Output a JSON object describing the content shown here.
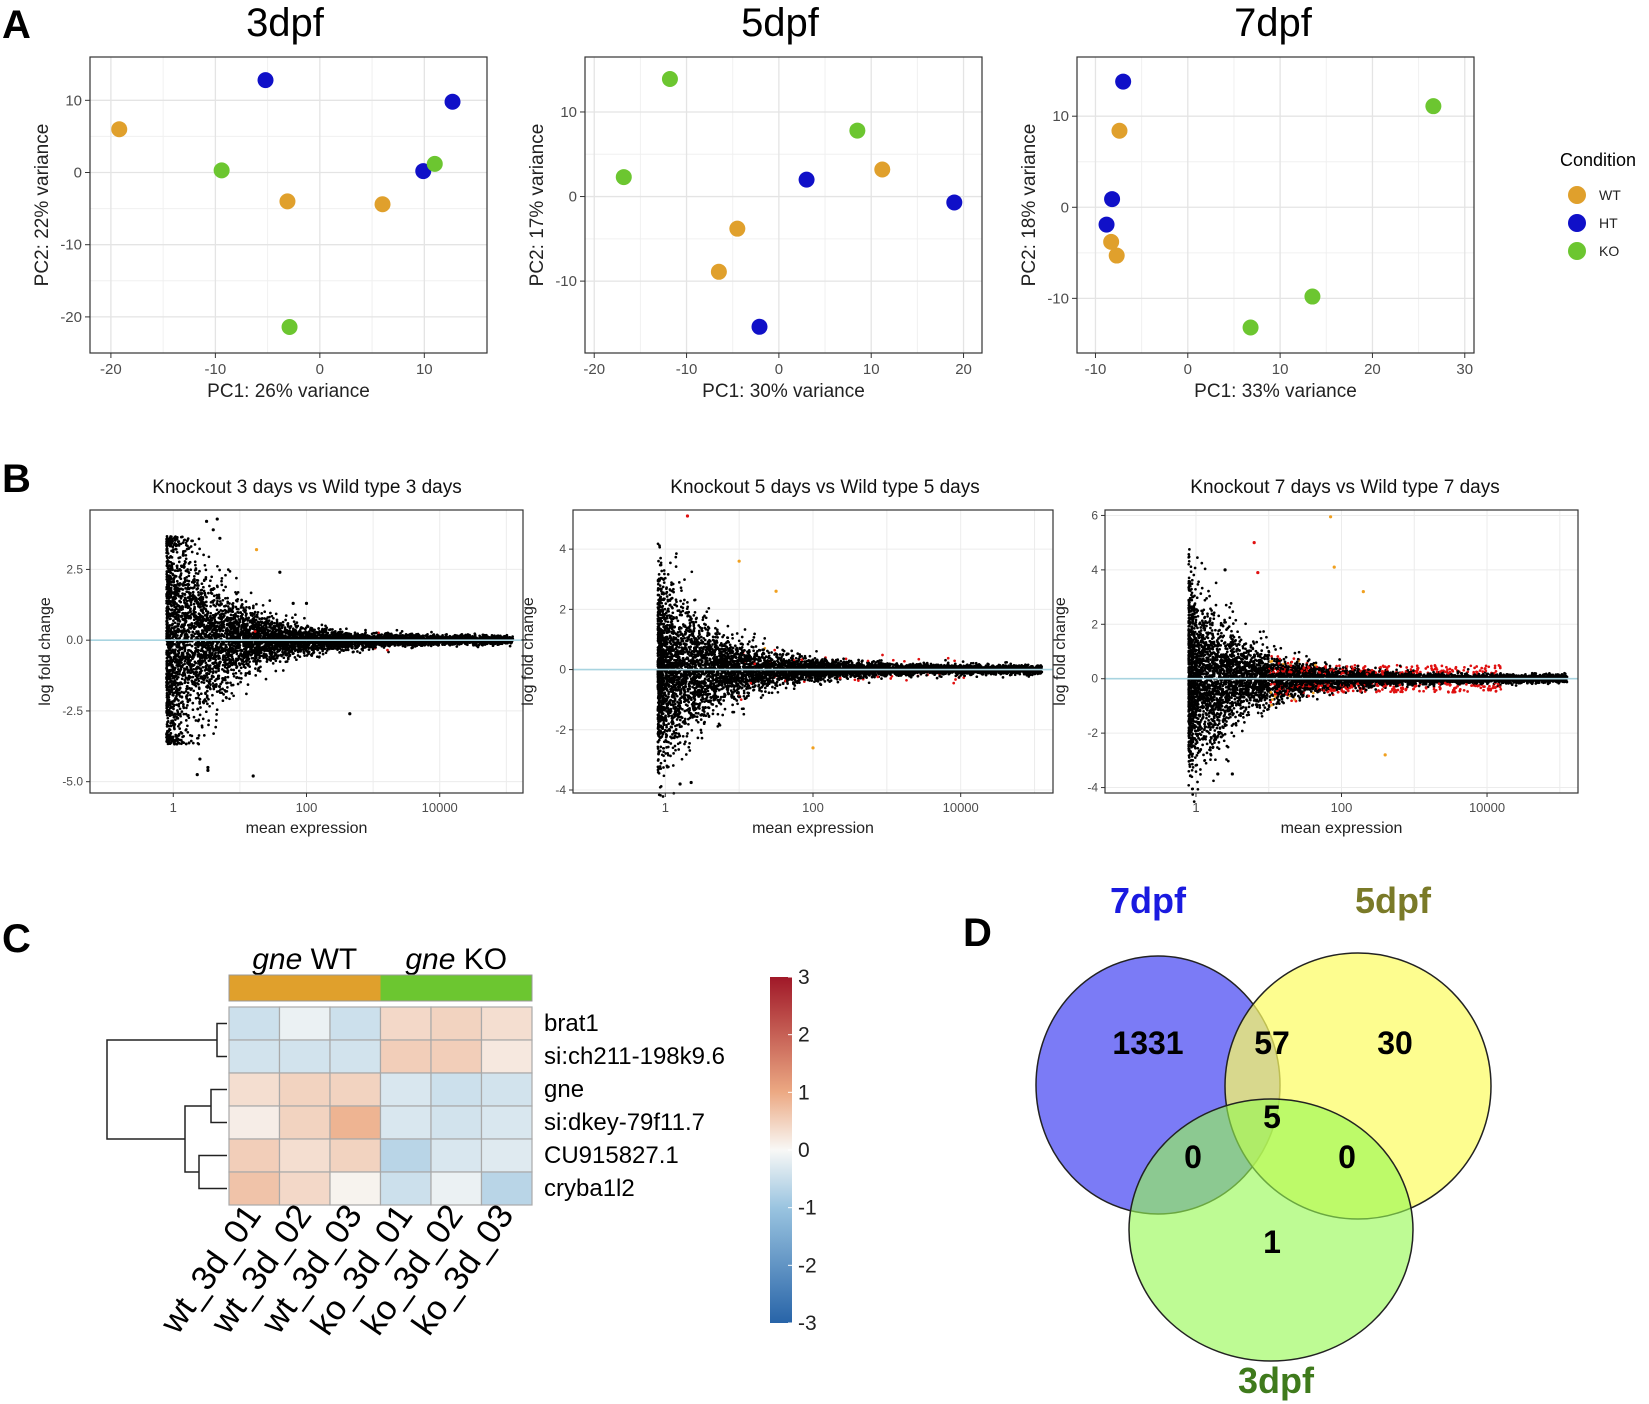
{
  "panel_letters": {
    "a": "A",
    "b": "B",
    "c": "C",
    "d": "D"
  },
  "colors": {
    "wt": "#e0a02c",
    "ht": "#1010c8",
    "ko": "#6cc630",
    "sig": "#e01010",
    "sig_fc": "#f0a020",
    "baseline": "#a8d4e0"
  },
  "pca": {
    "legend_title": "Condition",
    "legend_items": [
      {
        "label": "WT",
        "group": "wt"
      },
      {
        "label": "HT",
        "group": "ht"
      },
      {
        "label": "KO",
        "group": "ko"
      }
    ]
  },
  "chart_data": [
    {
      "type": "scatter",
      "panel": "A",
      "title": "3dpf",
      "xlabel": "PC1: 26% variance",
      "ylabel": "PC2: 22% variance",
      "xlim": [
        -22,
        16
      ],
      "ylim": [
        -25,
        16
      ],
      "xticks": [
        -20,
        -10,
        0,
        10
      ],
      "yticks": [
        -20,
        -10,
        0,
        10
      ],
      "series": [
        {
          "name": "WT",
          "points": [
            [
              -19.2,
              6
            ],
            [
              -3.1,
              -4
            ],
            [
              6,
              -4.4
            ]
          ]
        },
        {
          "name": "HT",
          "points": [
            [
              -5.2,
              12.8
            ],
            [
              12.7,
              9.8
            ],
            [
              9.9,
              0.2
            ]
          ]
        },
        {
          "name": "KO",
          "points": [
            [
              -9.4,
              0.3
            ],
            [
              11,
              1.2
            ],
            [
              -2.9,
              -21.4
            ]
          ]
        }
      ]
    },
    {
      "type": "scatter",
      "panel": "A",
      "title": "5dpf",
      "xlabel": "PC1: 30% variance",
      "ylabel": "PC2: 17% variance",
      "xlim": [
        -21,
        22
      ],
      "ylim": [
        -18.5,
        16.5
      ],
      "xticks": [
        -20,
        -10,
        0,
        10,
        20
      ],
      "yticks": [
        -10,
        0,
        10
      ],
      "series": [
        {
          "name": "WT",
          "points": [
            [
              11.2,
              3.2
            ],
            [
              -4.5,
              -3.8
            ],
            [
              -6.5,
              -8.9
            ]
          ]
        },
        {
          "name": "HT",
          "points": [
            [
              3,
              2
            ],
            [
              19,
              -0.7
            ],
            [
              -2.1,
              -15.4
            ]
          ]
        },
        {
          "name": "KO",
          "points": [
            [
              -11.8,
              13.9
            ],
            [
              -16.8,
              2.3
            ],
            [
              8.5,
              7.8
            ]
          ]
        }
      ]
    },
    {
      "type": "scatter",
      "panel": "A",
      "title": "7dpf",
      "xlabel": "PC1: 33% variance",
      "ylabel": "PC2: 18% variance",
      "xlim": [
        -12,
        31
      ],
      "ylim": [
        -16,
        16.5
      ],
      "xticks": [
        -10,
        0,
        10,
        20,
        30
      ],
      "yticks": [
        -10,
        0,
        10
      ],
      "series": [
        {
          "name": "WT",
          "points": [
            [
              -7.4,
              8.4
            ],
            [
              -8.3,
              -3.8
            ],
            [
              -7.7,
              -5.3
            ]
          ]
        },
        {
          "name": "HT",
          "points": [
            [
              -7,
              13.8
            ],
            [
              -8.2,
              0.9
            ],
            [
              -8.8,
              -1.9
            ]
          ]
        },
        {
          "name": "KO",
          "points": [
            [
              26.6,
              11.1
            ],
            [
              13.5,
              -9.8
            ],
            [
              6.8,
              -13.2
            ]
          ]
        }
      ]
    },
    {
      "type": "scatter",
      "panel": "B",
      "title": "Knockout 3 days vs Wild type 3 days",
      "xlabel": "mean expression",
      "ylabel": "log fold change",
      "xlim_log10": [
        -1.25,
        5.25
      ],
      "ylim": [
        -5.4,
        4.6
      ],
      "xticks": [
        1,
        100,
        10000
      ],
      "yticks": [
        -5.0,
        -2.5,
        0.0,
        2.5
      ],
      "ytick_labels": [
        "-5.0",
        "-2.5",
        "0.0",
        "2.5"
      ],
      "n_points": 6500,
      "start_log10": -0.1,
      "spread": 2.4,
      "red": 0.0015,
      "orange": 0.002,
      "outliers": [
        [
          0.5,
          4.2
        ],
        [
          0.66,
          4.28
        ],
        [
          0.6,
          3.9
        ],
        [
          0.7,
          3.6
        ],
        [
          0.15,
          3.0
        ],
        [
          0.4,
          -4.2
        ],
        [
          0.52,
          -4.6
        ],
        [
          0.36,
          -4.75
        ],
        [
          1.2,
          -4.8
        ],
        [
          0.52,
          -4.5
        ],
        [
          1.8,
          1.3
        ],
        [
          2.0,
          1.3
        ],
        [
          2.65,
          -2.6
        ],
        [
          1.6,
          2.4
        ],
        [
          1.25,
          3.2
        ]
      ],
      "outlier_colors": [
        "black",
        "black",
        "black",
        "black",
        "black",
        "black",
        "black",
        "black",
        "black",
        "black",
        "black",
        "black",
        "black",
        "black",
        "orange"
      ]
    },
    {
      "type": "scatter",
      "panel": "B",
      "title": "Knockout 5 days vs Wild type 5 days",
      "xlabel": "mean expression",
      "ylabel": "log fold change",
      "xlim_log10": [
        -1.25,
        5.25
      ],
      "ylim": [
        -4.1,
        5.3
      ],
      "xticks": [
        1,
        100,
        10000
      ],
      "yticks": [
        -4,
        -2,
        0,
        2,
        4
      ],
      "ytick_labels": [
        "-4",
        "-2",
        "0",
        "2",
        "4"
      ],
      "n_points": 6500,
      "start_log10": -0.1,
      "spread": 1.6,
      "red": 0.012,
      "orange": 0.01,
      "outliers": [
        [
          0.3,
          5.1
        ],
        [
          1.0,
          3.6
        ],
        [
          2.0,
          -2.6
        ],
        [
          0.2,
          -3.8
        ],
        [
          0.35,
          -3.75
        ],
        [
          1.5,
          2.6
        ]
      ],
      "outlier_colors": [
        "red",
        "orange",
        "orange",
        "black",
        "black",
        "orange"
      ]
    },
    {
      "type": "scatter",
      "panel": "B",
      "title": "Knockout 7 days vs Wild type 7 days",
      "xlabel": "mean expression",
      "ylabel": "log fold change",
      "xlim_log10": [
        -1.25,
        5.25
      ],
      "ylim": [
        -4.2,
        6.2
      ],
      "xticks": [
        1,
        100,
        10000
      ],
      "yticks": [
        -4,
        -2,
        0,
        2,
        4,
        6
      ],
      "ytick_labels": [
        "-4",
        "-2",
        "0",
        "2",
        "4",
        "6"
      ],
      "n_points": 6500,
      "start_log10": -0.1,
      "spread": 1.7,
      "red": 0.14,
      "orange": 0.06,
      "outliers": [
        [
          1.85,
          5.95
        ],
        [
          0.8,
          5.0
        ],
        [
          0.4,
          4.0
        ],
        [
          0.3,
          -3.5
        ],
        [
          0.5,
          -3.5
        ],
        [
          2.6,
          -2.8
        ],
        [
          1.9,
          4.1
        ],
        [
          2.3,
          3.2
        ],
        [
          0.85,
          3.9
        ]
      ],
      "outlier_colors": [
        "orange",
        "red",
        "black",
        "black",
        "black",
        "orange",
        "orange",
        "orange",
        "red"
      ]
    },
    {
      "type": "heatmap",
      "panel": "C",
      "group_labels": [
        {
          "italic": "gne",
          "rest": " WT"
        },
        {
          "italic": "gne",
          "rest": " KO"
        }
      ],
      "columns": [
        "wt_3d_01",
        "wt_3d_02",
        "wt_3d_03",
        "ko_3d_01",
        "ko_3d_02",
        "ko_3d_03"
      ],
      "column_groups": [
        "wt",
        "wt",
        "wt",
        "ko",
        "ko",
        "ko"
      ],
      "rows": [
        "brat1",
        "si:ch211-198k9.6",
        "gne",
        "si:dkey-79f11.7",
        "CU915827.1",
        "cryba1l2"
      ],
      "values": [
        [
          -0.7,
          -0.2,
          -0.7,
          0.6,
          0.7,
          0.5
        ],
        [
          -0.6,
          -0.6,
          -0.6,
          0.8,
          0.8,
          0.3
        ],
        [
          0.5,
          0.7,
          0.7,
          -0.5,
          -0.7,
          -0.6
        ],
        [
          0.2,
          0.7,
          1.3,
          -0.5,
          -0.6,
          -0.5
        ],
        [
          0.8,
          0.5,
          0.7,
          -1.0,
          -0.5,
          -0.4
        ],
        [
          1.0,
          0.6,
          0.1,
          -0.7,
          -0.2,
          -1.0
        ]
      ],
      "scale_range": [
        -3,
        3
      ],
      "scale_ticks": [
        3,
        2,
        1,
        0,
        -1,
        -2,
        -3
      ],
      "scale_tick_labels": [
        "3",
        "2",
        "1",
        "0",
        "-1",
        "-2",
        "-3"
      ]
    },
    {
      "type": "venn",
      "panel": "D",
      "sets": [
        {
          "label": "7dpf",
          "color": "#1a1ae0"
        },
        {
          "label": "5dpf",
          "color": "#7a7a28"
        },
        {
          "label": "3dpf",
          "color": "#3f7a1c"
        }
      ],
      "regions": {
        "only_7dpf": "1331",
        "only_5dpf": "30",
        "only_3dpf": "1",
        "7dpf_5dpf": "57",
        "7dpf_3dpf": "0",
        "5dpf_3dpf": "0",
        "all": "5"
      }
    }
  ]
}
